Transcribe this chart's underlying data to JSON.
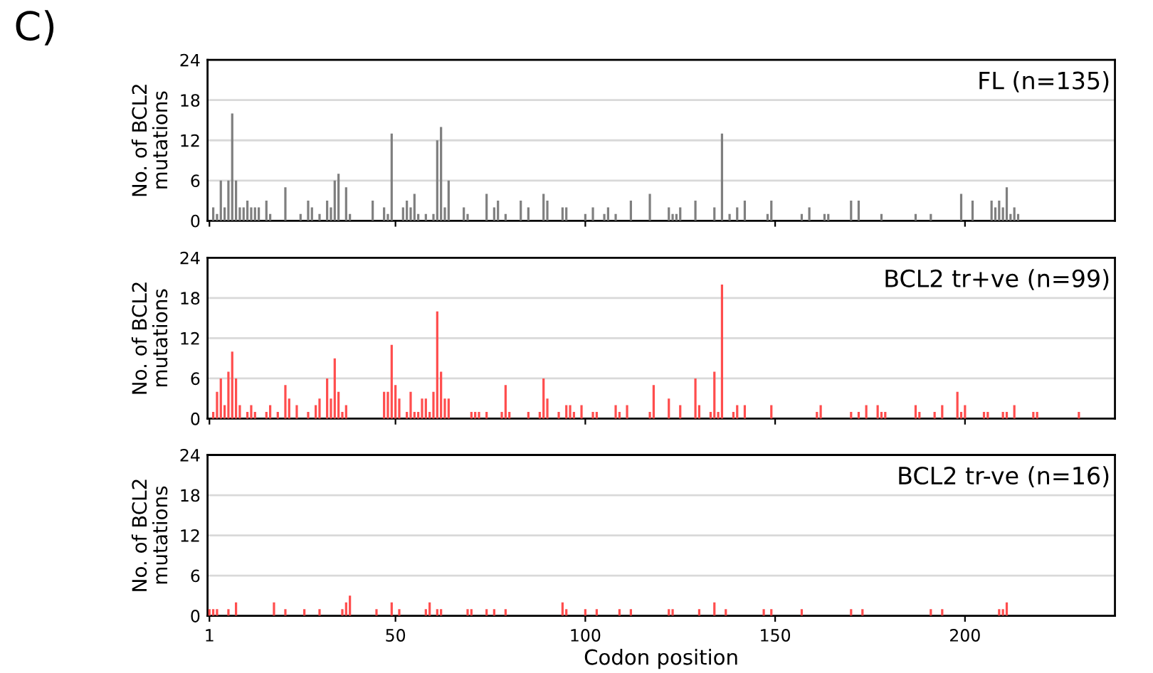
{
  "chart_data": [
    {
      "type": "bar",
      "title": "FL (n=135)",
      "ylabel": "No. of BCL2\nmutations",
      "annotations": [
        "C)"
      ],
      "color": "#7f7f7f",
      "grid": "y",
      "tick_labels": "y",
      "x": [
        2,
        3,
        4,
        5,
        6,
        7,
        8,
        9,
        10,
        11,
        12,
        13,
        14,
        16,
        17,
        21,
        25,
        27,
        28,
        30,
        32,
        33,
        34,
        35,
        37,
        38,
        44,
        47,
        48,
        49,
        52,
        53,
        54,
        55,
        56,
        58,
        60,
        61,
        62,
        63,
        64,
        68,
        69,
        74,
        76,
        77,
        79,
        83,
        85,
        89,
        90,
        94,
        95,
        100,
        102,
        105,
        106,
        108,
        112,
        117,
        122,
        123,
        124,
        125,
        129,
        134,
        136,
        138,
        140,
        142,
        148,
        149,
        157,
        159,
        163,
        164,
        170,
        172,
        178,
        187,
        191,
        199,
        202,
        207,
        208,
        209,
        210,
        211,
        212,
        213,
        214
      ],
      "values": [
        2,
        1,
        6,
        2,
        6,
        16,
        6,
        2,
        2,
        3,
        2,
        2,
        2,
        3,
        1,
        5,
        1,
        3,
        2,
        1,
        3,
        2,
        6,
        7,
        5,
        1,
        3,
        2,
        1,
        13,
        2,
        3,
        2,
        4,
        1,
        1,
        1,
        12,
        14,
        2,
        6,
        2,
        1,
        4,
        2,
        3,
        1,
        3,
        2,
        4,
        3,
        2,
        2,
        1,
        2,
        1,
        2,
        1,
        3,
        4,
        2,
        1,
        1,
        2,
        3,
        2,
        13,
        1,
        2,
        3,
        1,
        3,
        1,
        2,
        1,
        1,
        3,
        3,
        1,
        1,
        1,
        4,
        3,
        3,
        2,
        3,
        2,
        5,
        1,
        2,
        1
      ],
      "xlim": [
        0.5,
        239.5
      ],
      "xticks": [
        1,
        50,
        100,
        150,
        200
      ],
      "ylim": [
        0,
        24
      ],
      "yticks": [
        0,
        6,
        12,
        18,
        24
      ]
    },
    {
      "type": "bar",
      "title": "BCL2 tr+ve (n=99)",
      "ylabel": "No. of BCL2\nmutations",
      "color": "#ff4d4d",
      "grid": "y",
      "tick_labels": "y",
      "x": [
        2,
        3,
        4,
        5,
        6,
        7,
        8,
        9,
        11,
        12,
        13,
        16,
        17,
        19,
        21,
        22,
        24,
        27,
        29,
        30,
        32,
        33,
        34,
        35,
        36,
        37,
        47,
        48,
        49,
        50,
        51,
        53,
        54,
        55,
        56,
        57,
        58,
        59,
        60,
        61,
        62,
        63,
        64,
        70,
        71,
        72,
        74,
        78,
        79,
        80,
        85,
        88,
        89,
        90,
        93,
        95,
        96,
        97,
        99,
        102,
        103,
        108,
        109,
        111,
        117,
        118,
        122,
        125,
        129,
        130,
        133,
        134,
        135,
        136,
        139,
        140,
        142,
        149,
        161,
        162,
        170,
        172,
        174,
        177,
        178,
        179,
        187,
        188,
        192,
        194,
        198,
        199,
        200,
        205,
        206,
        210,
        211,
        213,
        218,
        219,
        230
      ],
      "values": [
        1,
        4,
        6,
        2,
        7,
        10,
        6,
        2,
        1,
        2,
        1,
        1,
        2,
        1,
        5,
        3,
        2,
        1,
        2,
        3,
        6,
        3,
        9,
        4,
        1,
        2,
        4,
        4,
        11,
        5,
        3,
        1,
        4,
        1,
        1,
        3,
        3,
        1,
        4,
        16,
        7,
        3,
        3,
        1,
        1,
        1,
        1,
        1,
        5,
        1,
        1,
        1,
        6,
        3,
        1,
        2,
        2,
        1,
        2,
        1,
        1,
        2,
        1,
        2,
        1,
        5,
        3,
        2,
        6,
        2,
        1,
        7,
        1,
        20,
        1,
        2,
        2,
        2,
        1,
        2,
        1,
        1,
        2,
        2,
        1,
        1,
        2,
        1,
        1,
        2,
        4,
        1,
        2,
        1,
        1,
        1,
        1,
        2,
        1,
        1,
        1
      ],
      "xlim": [
        0.5,
        239.5
      ],
      "xticks": [
        1,
        50,
        100,
        150,
        200
      ],
      "ylim": [
        0,
        24
      ],
      "yticks": [
        0,
        6,
        12,
        18,
        24
      ]
    },
    {
      "type": "bar",
      "title": "BCL2 tr-ve (n=16)",
      "ylabel": "No. of BCL2\nmutations",
      "xlabel": "Codon position",
      "color": "#ff4d4d",
      "grid": "y",
      "x": [
        1,
        2,
        3,
        6,
        8,
        18,
        21,
        26,
        30,
        36,
        37,
        38,
        45,
        49,
        51,
        58,
        59,
        61,
        62,
        69,
        70,
        74,
        76,
        79,
        94,
        95,
        100,
        103,
        109,
        112,
        122,
        123,
        130,
        134,
        137,
        147,
        149,
        157,
        170,
        173,
        191,
        194,
        209,
        210,
        211
      ],
      "values": [
        1,
        1,
        1,
        1,
        2,
        2,
        1,
        1,
        1,
        1,
        2,
        3,
        1,
        2,
        1,
        1,
        2,
        1,
        1,
        1,
        1,
        1,
        1,
        1,
        2,
        1,
        1,
        1,
        1,
        1,
        1,
        1,
        1,
        2,
        1,
        1,
        1,
        1,
        1,
        1,
        1,
        1,
        1,
        1,
        2
      ],
      "xlim": [
        0.5,
        239.5
      ],
      "xticks": [
        1,
        50,
        100,
        150,
        200
      ],
      "ylim": [
        0,
        24
      ],
      "yticks": [
        0,
        6,
        12,
        18,
        24
      ]
    }
  ]
}
